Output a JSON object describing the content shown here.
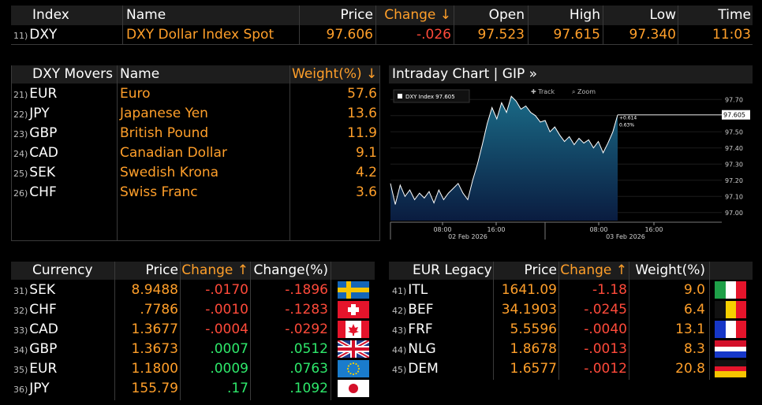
{
  "top": {
    "headers": [
      "Index",
      "Name",
      "Price",
      "Change ↓",
      "Open",
      "High",
      "Low",
      "Time"
    ],
    "row": {
      "num": "11)",
      "ticker": "DXY",
      "name": "DXY Dollar Index Spot",
      "price": "97.606",
      "change": "-.026",
      "open": "97.523",
      "high": "97.615",
      "low": "97.340",
      "time": "11:03"
    }
  },
  "movers": {
    "headers": [
      "DXY Movers",
      "Name",
      "Weight(%) ↓"
    ],
    "rows": [
      {
        "num": "21)",
        "ticker": "EUR",
        "name": "Euro",
        "weight": "57.6"
      },
      {
        "num": "22)",
        "ticker": "JPY",
        "name": "Japanese Yen",
        "weight": "13.6"
      },
      {
        "num": "23)",
        "ticker": "GBP",
        "name": "British Pound",
        "weight": "11.9"
      },
      {
        "num": "24)",
        "ticker": "CAD",
        "name": "Canadian Dollar",
        "weight": "9.1"
      },
      {
        "num": "25)",
        "ticker": "SEK",
        "name": "Swedish Krona",
        "weight": "4.2"
      },
      {
        "num": "26)",
        "ticker": "CHF",
        "name": "Swiss Franc",
        "weight": "3.6"
      }
    ]
  },
  "chart": {
    "title": "Intraday Chart | GIP »",
    "legend": "DXY Index 97.605",
    "track": "Track",
    "zoom": "Zoom",
    "last_label": "97.605",
    "annotation_1": "+0.614",
    "annotation_2": "0.63%",
    "time_ticks": [
      "08:00",
      "16:00",
      "08:00",
      "16:00"
    ],
    "date_labels": [
      "02 Feb 2026",
      "03 Feb 2026"
    ]
  },
  "chart_data": {
    "type": "area",
    "title": "DXY Index",
    "xlabel": "",
    "ylabel": "",
    "ylim": [
      96.95,
      97.75
    ],
    "y_ticks": [
      97.0,
      97.1,
      97.2,
      97.3,
      97.4,
      97.5,
      97.6,
      97.7
    ],
    "series": [
      {
        "name": "DXY Index",
        "last": 97.605,
        "values": [
          97.18,
          97.05,
          97.17,
          97.1,
          97.14,
          97.08,
          97.12,
          97.09,
          97.13,
          97.06,
          97.14,
          97.08,
          97.12,
          97.15,
          97.18,
          97.12,
          97.08,
          97.2,
          97.3,
          97.42,
          97.55,
          97.65,
          97.58,
          97.68,
          97.62,
          97.72,
          97.69,
          97.64,
          97.66,
          97.62,
          97.6,
          97.56,
          97.57,
          97.5,
          97.53,
          97.48,
          97.44,
          97.47,
          97.42,
          97.46,
          97.43,
          97.45,
          97.4,
          97.44,
          97.37,
          97.43,
          97.5,
          97.605
        ]
      }
    ]
  },
  "currency": {
    "headers": [
      "Currency",
      "Price",
      "Change ↑",
      "Change(%)"
    ],
    "rows": [
      {
        "num": "31)",
        "ticker": "SEK",
        "price": "8.9488",
        "change": "-.0170",
        "pct": "-.1896",
        "dir": "down",
        "flag": "se-flag-icon"
      },
      {
        "num": "32)",
        "ticker": "CHF",
        "price": ".7786",
        "change": "-.0010",
        "pct": "-.1283",
        "dir": "down",
        "flag": "ch-flag-icon"
      },
      {
        "num": "33)",
        "ticker": "CAD",
        "price": "1.3677",
        "change": "-.0004",
        "pct": "-.0292",
        "dir": "down",
        "flag": "ca-flag-icon"
      },
      {
        "num": "34)",
        "ticker": "GBP",
        "price": "1.3673",
        "change": ".0007",
        "pct": ".0512",
        "dir": "up",
        "flag": "gb-flag-icon"
      },
      {
        "num": "35)",
        "ticker": "EUR",
        "price": "1.1800",
        "change": ".0009",
        "pct": ".0763",
        "dir": "up",
        "flag": "eu-flag-icon"
      },
      {
        "num": "36)",
        "ticker": "JPY",
        "price": "155.79",
        "change": ".17",
        "pct": ".1092",
        "dir": "up",
        "flag": "jp-flag-icon"
      }
    ]
  },
  "legacy": {
    "headers": [
      "EUR Legacy",
      "Price",
      "Change ↑",
      "Weight(%)"
    ],
    "rows": [
      {
        "num": "41)",
        "ticker": "ITL",
        "price": "1641.09",
        "change": "-1.18",
        "weight": "9.0",
        "flag": "it-flag-icon"
      },
      {
        "num": "42)",
        "ticker": "BEF",
        "price": "34.1903",
        "change": "-.0245",
        "weight": "6.4",
        "flag": "be-flag-icon"
      },
      {
        "num": "43)",
        "ticker": "FRF",
        "price": "5.5596",
        "change": "-.0040",
        "weight": "13.1",
        "flag": "fr-flag-icon"
      },
      {
        "num": "44)",
        "ticker": "NLG",
        "price": "1.8678",
        "change": "-.0013",
        "weight": "8.3",
        "flag": "nl-flag-icon"
      },
      {
        "num": "45)",
        "ticker": "DEM",
        "price": "1.6577",
        "change": "-.0012",
        "weight": "20.8",
        "flag": "de-flag-icon"
      }
    ]
  }
}
